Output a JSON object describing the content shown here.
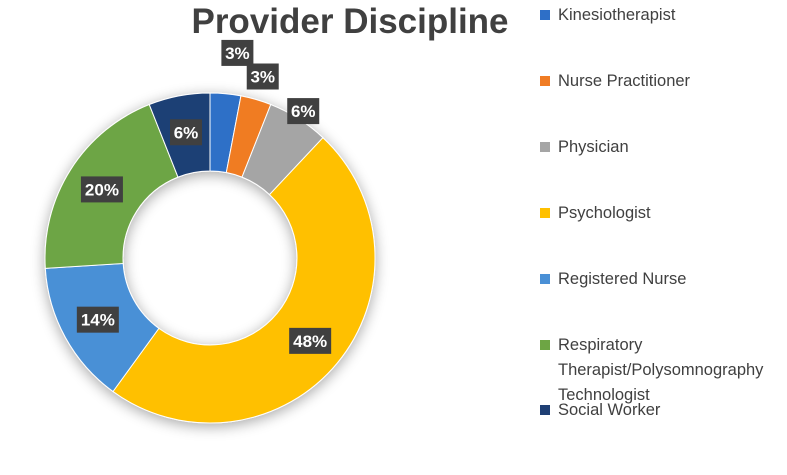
{
  "chart_data": {
    "type": "pie",
    "title": "Provider Discipline",
    "legend_position": "right",
    "slices": [
      {
        "label": "Kinesiotherapist",
        "value": 3,
        "display": "3%",
        "color": "#2E6FC7"
      },
      {
        "label": "Nurse Practitioner",
        "value": 3,
        "display": "3%",
        "color": "#F07C24"
      },
      {
        "label": "Physician",
        "value": 6,
        "display": "6%",
        "color": "#A5A5A5"
      },
      {
        "label": "Psychologist",
        "value": 48,
        "display": "48%",
        "color": "#FFC000"
      },
      {
        "label": "Registered Nurse",
        "value": 14,
        "display": "14%",
        "color": "#4A90D6"
      },
      {
        "label": "Respiratory Therapist/Polysomnography Technologist",
        "value": 20,
        "display": "20%",
        "color": "#6DA544"
      },
      {
        "label": "Social Worker",
        "value": 6,
        "display": "6%",
        "color": "#1F3F74"
      }
    ]
  },
  "legend": {
    "items": [
      {
        "lines": [
          "Kinesiotherapist"
        ],
        "color": "#2E6FC7"
      },
      {
        "lines": [
          "Nurse Practitioner"
        ],
        "color": "#F07C24"
      },
      {
        "lines": [
          "Physician"
        ],
        "color": "#A5A5A5"
      },
      {
        "lines": [
          "Psychologist"
        ],
        "color": "#FFC000"
      },
      {
        "lines": [
          "Registered Nurse"
        ],
        "color": "#4A90D6"
      },
      {
        "lines": [
          "Respiratory",
          "Therapist/Polysomnography",
          "Technologist"
        ],
        "color": "#6DA544"
      },
      {
        "lines": [
          "Social Worker"
        ],
        "color": "#1F3F74"
      }
    ]
  }
}
